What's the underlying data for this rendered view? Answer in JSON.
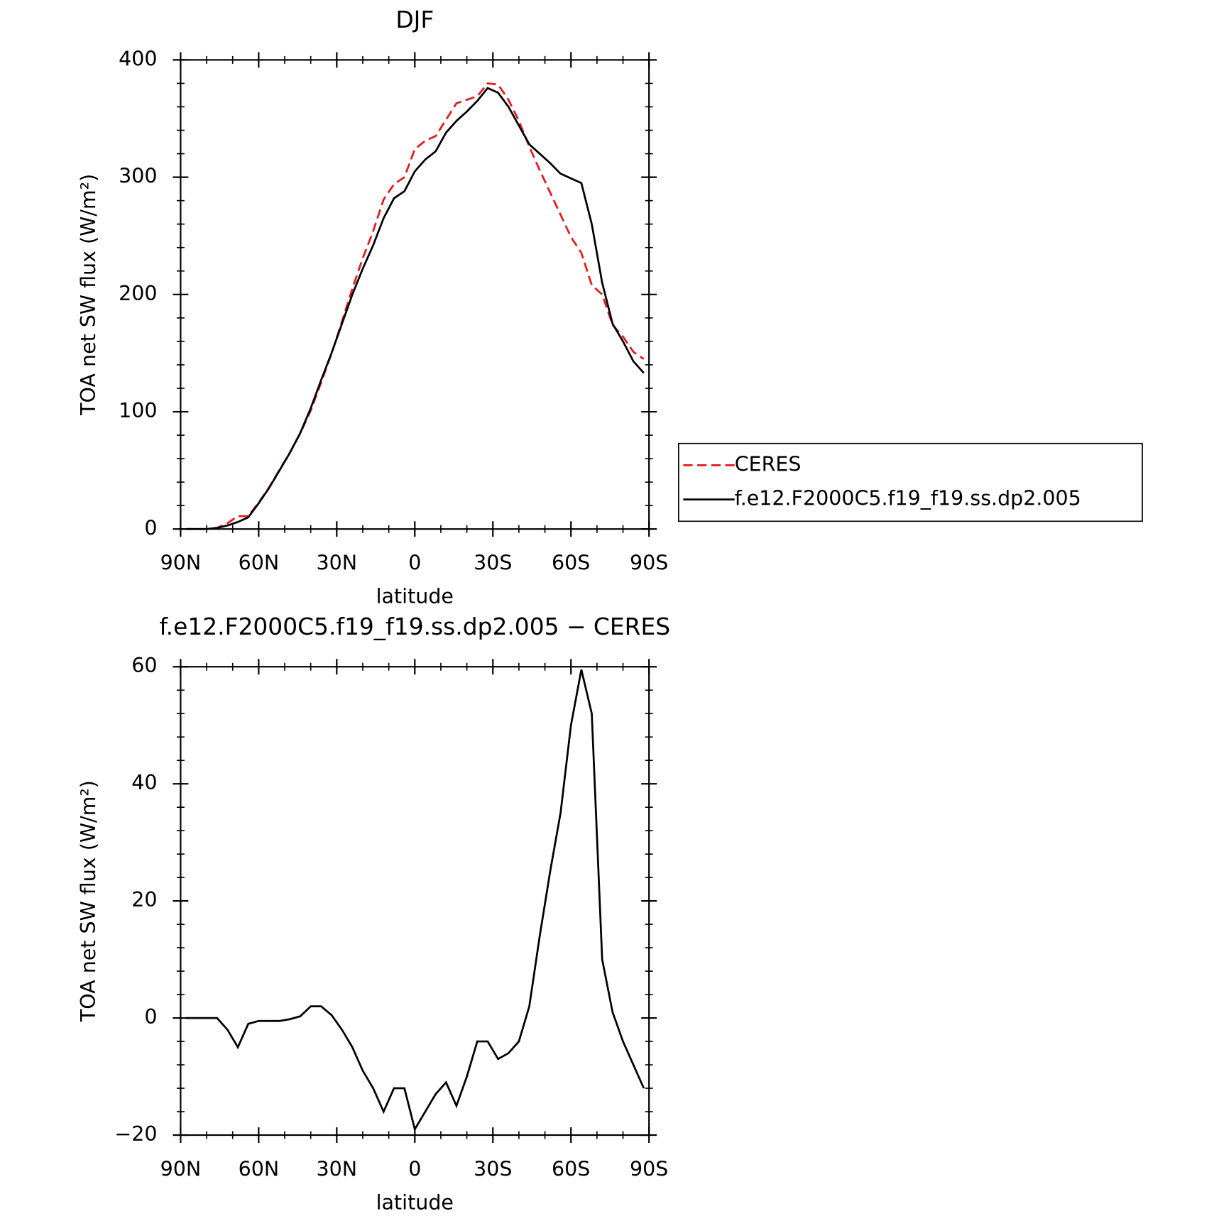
{
  "chart_data": [
    {
      "type": "line",
      "title": "DJF",
      "xlabel": "latitude",
      "ylabel": "TOA net SW flux (W/m²)",
      "x": [
        88,
        84,
        80,
        76,
        72,
        68,
        64,
        60,
        56,
        52,
        48,
        44,
        40,
        36,
        32,
        28,
        24,
        20,
        16,
        12,
        8,
        4,
        0,
        -4,
        -8,
        -12,
        -16,
        -20,
        -24,
        -28,
        -32,
        -36,
        -40,
        -44,
        -48,
        -52,
        -56,
        -60,
        -64,
        -68,
        -72,
        -76,
        -80,
        -84,
        -88
      ],
      "series": [
        {
          "name": "CERES",
          "color": "#e31a1c",
          "dash": true,
          "values": [
            0,
            0,
            0,
            1,
            5,
            11,
            11,
            22.5,
            35.5,
            50.5,
            65.2,
            81.7,
            101,
            125,
            149.5,
            177,
            205,
            231,
            254,
            281,
            294,
            300,
            324,
            331,
            335,
            349,
            363,
            366,
            369,
            380,
            379,
            366,
            348,
            326,
            306,
            287,
            268,
            249,
            235.5,
            208,
            200,
            174,
            164,
            151,
            145
          ]
        },
        {
          "name": "f.e12.F2000C5.f19_f19.ss.dp2.005",
          "color": "#000000",
          "dash": false,
          "values": [
            0,
            0,
            0,
            1,
            3,
            6,
            10,
            22,
            35,
            50,
            65,
            82,
            103,
            127,
            150,
            175,
            200,
            222,
            242,
            265,
            282,
            288,
            305,
            315,
            322,
            338,
            348,
            356,
            365,
            376,
            372,
            360,
            344,
            328,
            320,
            312,
            303,
            299,
            295,
            260,
            210,
            175,
            160,
            143,
            133
          ]
        }
      ],
      "xlim": [
        90,
        -90
      ],
      "xticks": [
        {
          "value": 90,
          "label": "90N"
        },
        {
          "value": 60,
          "label": "60N"
        },
        {
          "value": 30,
          "label": "30N"
        },
        0,
        {
          "value": -30,
          "label": "30S"
        },
        {
          "value": -60,
          "label": "60S"
        },
        {
          "value": -90,
          "label": "90S"
        }
      ],
      "ylim": [
        0,
        400
      ],
      "yticks": [
        0,
        100,
        200,
        300,
        400
      ],
      "legend": "right"
    },
    {
      "type": "line",
      "title": "f.e12.F2000C5.f19_f19.ss.dp2.005 − CERES",
      "xlabel": "latitude",
      "ylabel": "TOA net SW flux (W/m²)",
      "x": [
        88,
        84,
        80,
        76,
        72,
        68,
        64,
        60,
        56,
        52,
        48,
        44,
        40,
        36,
        32,
        28,
        24,
        20,
        16,
        12,
        8,
        4,
        0,
        -4,
        -8,
        -12,
        -16,
        -20,
        -24,
        -28,
        -32,
        -36,
        -40,
        -44,
        -48,
        -52,
        -56,
        -60,
        -64,
        -68,
        -72,
        -76,
        -80,
        -84,
        -88
      ],
      "series": [
        {
          "color": "#000000",
          "dash": false,
          "values": [
            0,
            0,
            0,
            0,
            -2,
            -5,
            -1,
            -0.5,
            -0.5,
            -0.5,
            -0.2,
            0.3,
            2,
            2,
            0.5,
            -2,
            -5,
            -9,
            -12,
            -16,
            -12,
            -12,
            -19,
            -16,
            -13,
            -11,
            -15,
            -10,
            -4,
            -4,
            -7,
            -6,
            -4,
            2,
            14,
            25,
            35,
            50,
            59.5,
            52,
            10,
            1,
            -4,
            -8,
            -12
          ]
        }
      ],
      "xlim": [
        90,
        -90
      ],
      "xticks": [
        {
          "value": 90,
          "label": "90N"
        },
        {
          "value": 60,
          "label": "60N"
        },
        {
          "value": 30,
          "label": "30N"
        },
        0,
        {
          "value": -30,
          "label": "30S"
        },
        {
          "value": -60,
          "label": "60S"
        },
        {
          "value": -90,
          "label": "90S"
        }
      ],
      "ylim": [
        -20,
        60
      ],
      "yticks": [
        {
          "value": -20,
          "label": "−20"
        },
        0,
        20,
        40,
        60
      ]
    }
  ]
}
